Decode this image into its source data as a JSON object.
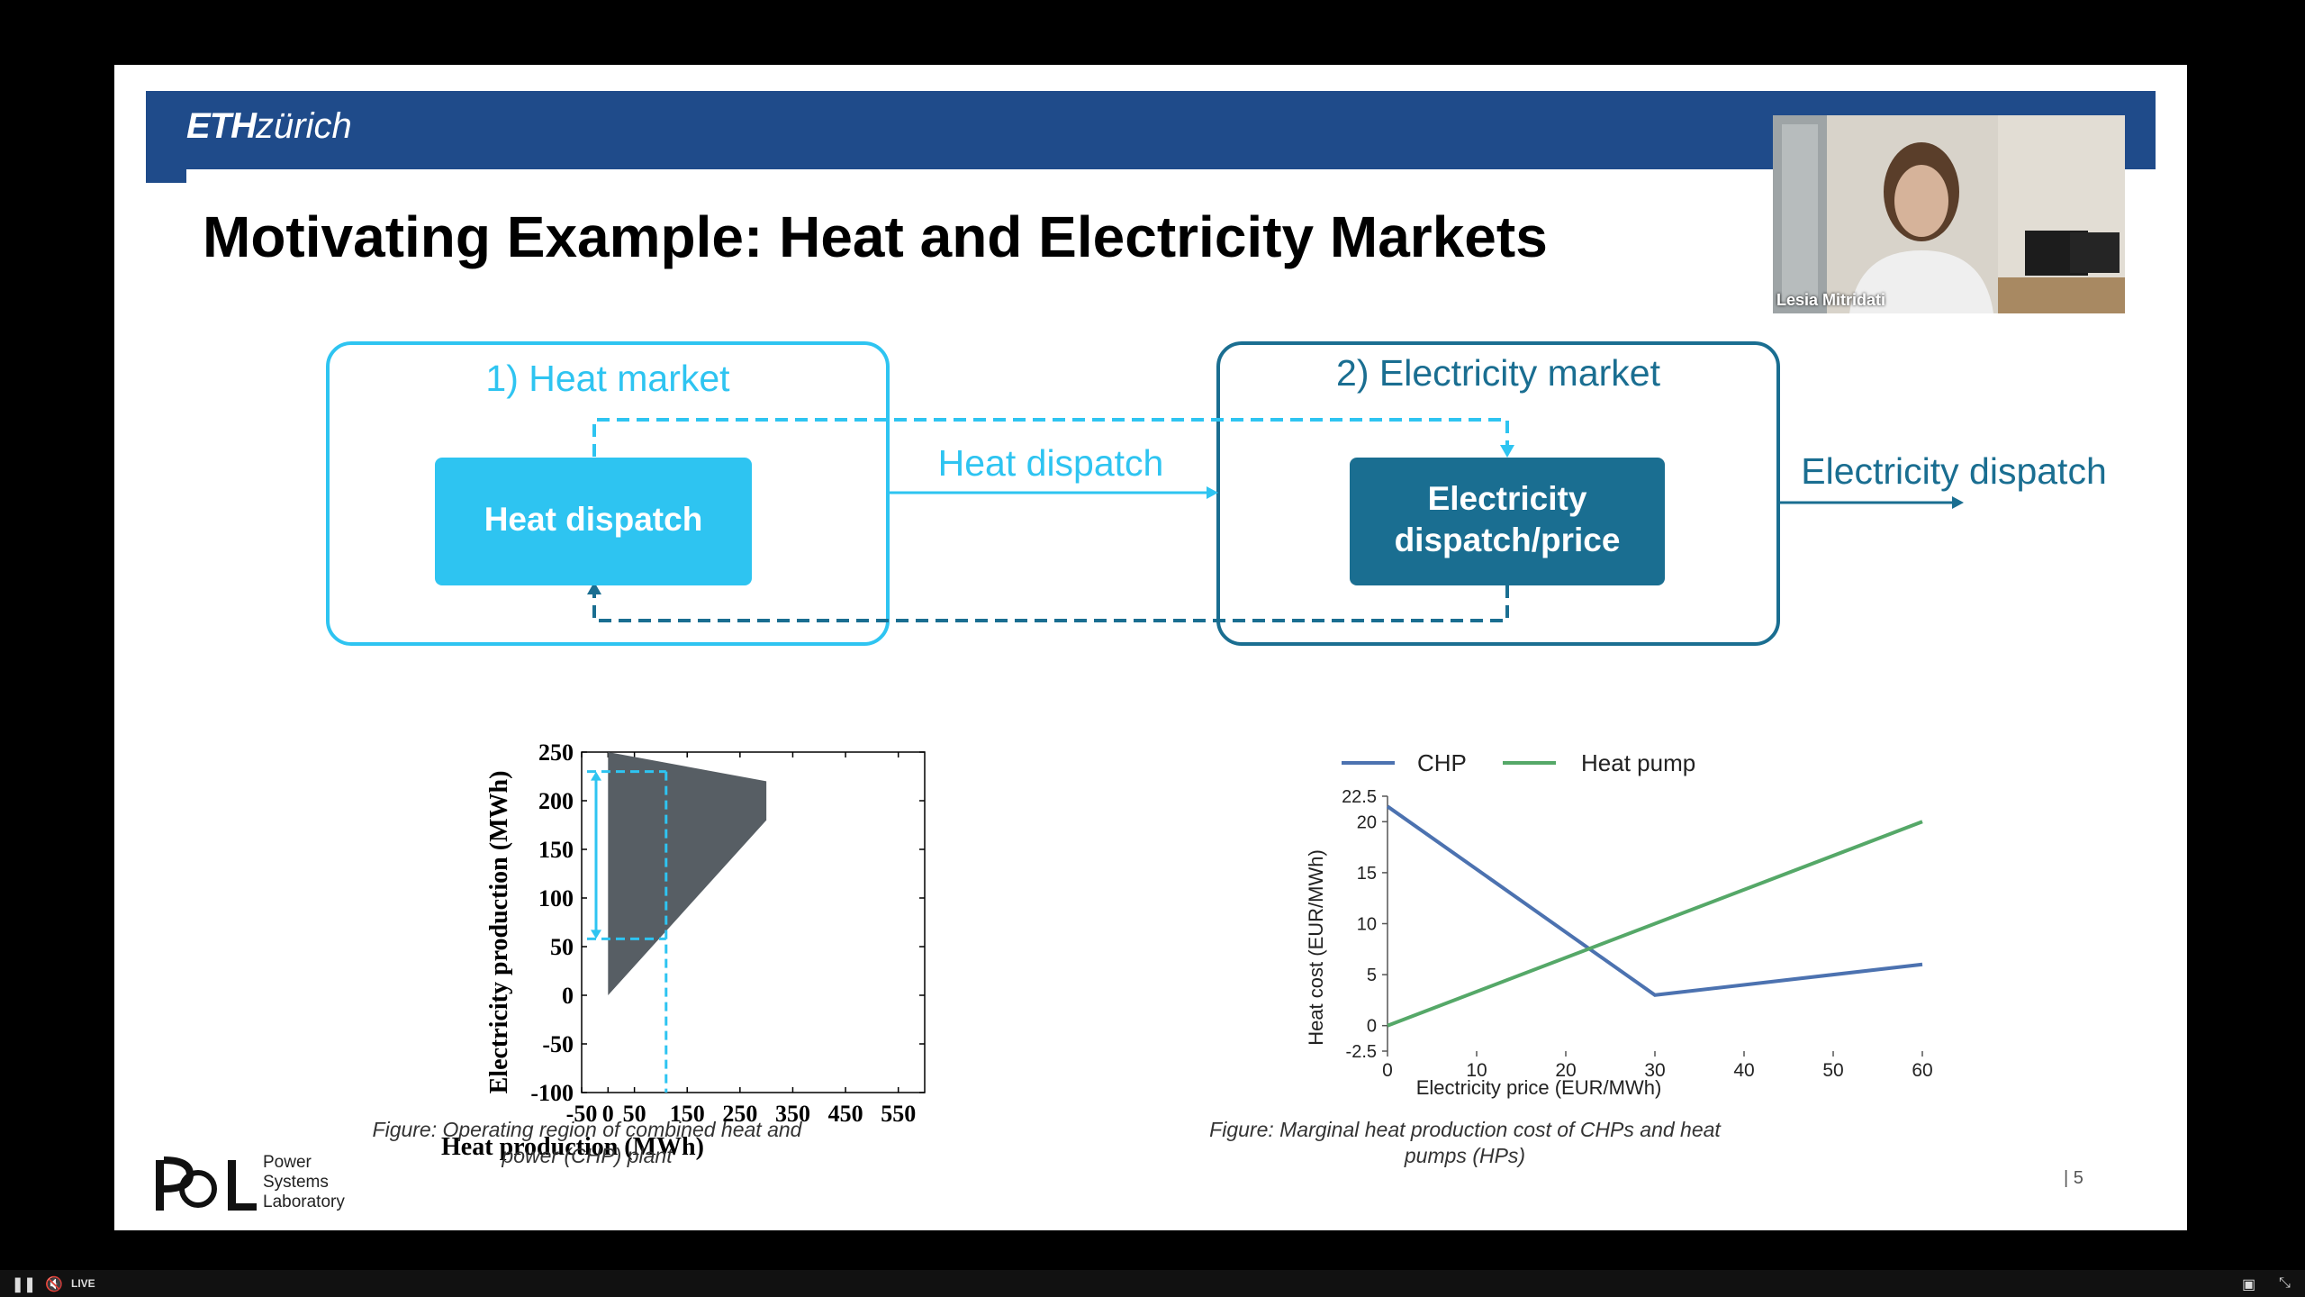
{
  "slide": {
    "logo_strong": "ETH",
    "logo_rest": "zürich",
    "title": "Motivating Example: Heat and Electricity Markets",
    "page_number": "|   5"
  },
  "webcam": {
    "participant_name": "Lesia Mitridati"
  },
  "diagram": {
    "heat_market_label": "1) Heat market",
    "electricity_market_label": "2) Electricity market",
    "heat_dispatch_box": "Heat dispatch",
    "electricity_box_line1": "Electricity",
    "electricity_box_line2": "dispatch/price",
    "arrow_heat_dispatch": "Heat dispatch",
    "arrow_electricity_dispatch": "Electricity dispatch",
    "colors": {
      "light_blue": "#2ec4f1",
      "dark_teal": "#1a6e91"
    }
  },
  "chart_data": [
    {
      "type": "area",
      "xlabel": "Heat production (MWh)",
      "ylabel": "Electricity production (MWh)",
      "xlim": [
        -50,
        600
      ],
      "ylim": [
        -100,
        250
      ],
      "xticks": [
        "-50",
        "0",
        "50",
        "150",
        "250",
        "350",
        "450",
        "550"
      ],
      "yticks": [
        "250",
        "200",
        "150",
        "100",
        "50",
        "0",
        "-50",
        "-100"
      ],
      "polygon": [
        [
          0,
          250
        ],
        [
          300,
          220
        ],
        [
          300,
          180
        ],
        [
          0,
          0
        ]
      ],
      "dashed_heat_level": 110,
      "dashed_elec_range": [
        58,
        230
      ],
      "caption": "Figure: Operating region of combined heat and power (CHP) plant"
    },
    {
      "type": "line",
      "xlabel": "Electricity price (EUR/MWh)",
      "ylabel": "Heat cost (EUR/MWh)",
      "xlim": [
        0,
        60
      ],
      "ylim": [
        -2.5,
        22.5
      ],
      "xticks": [
        "0",
        "10",
        "20",
        "30",
        "40",
        "50",
        "60"
      ],
      "yticks": [
        "22.5",
        "20",
        "15",
        "10",
        "5",
        "0",
        "-2.5"
      ],
      "series": [
        {
          "name": "CHP",
          "color": "#4c72b0",
          "x": [
            0,
            30,
            60
          ],
          "y": [
            21.5,
            3,
            6
          ]
        },
        {
          "name": "Heat pump",
          "color": "#55a868",
          "x": [
            0,
            60
          ],
          "y": [
            0,
            20
          ]
        }
      ],
      "legend": "top",
      "caption": "Figure: Marginal heat production cost of CHPs and heat pumps (HPs)"
    }
  ],
  "psl_logo": {
    "lines": [
      "Power",
      "Systems",
      "Laboratory"
    ]
  },
  "player": {
    "live_label": "LIVE"
  }
}
